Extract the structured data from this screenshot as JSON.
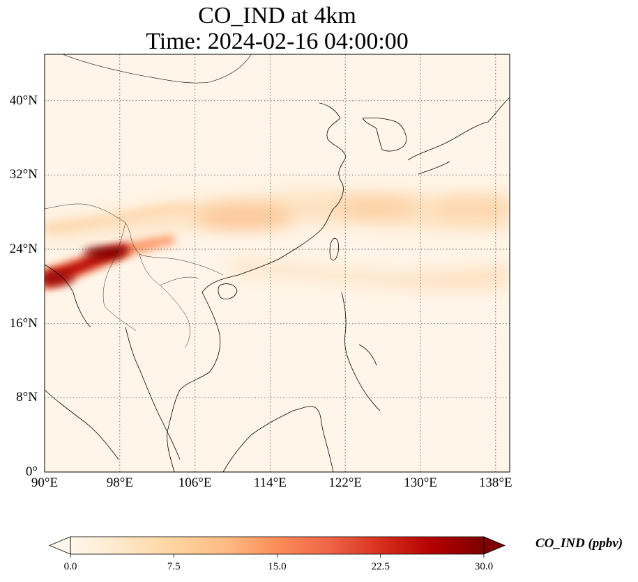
{
  "figure": {
    "title_line1": "CO_IND at 4km",
    "title_line2": "Time: 2024-02-16 04:00:00"
  },
  "map": {
    "projection": "PlateCarree",
    "extent": {
      "lon_min": 90,
      "lon_max": 139.5,
      "lat_min": 0,
      "lat_max": 45
    },
    "gridlines": "dotted",
    "lat_ticks": [
      {
        "value": 0,
        "label": "0°"
      },
      {
        "value": 8,
        "label": "8°N"
      },
      {
        "value": 16,
        "label": "16°N"
      },
      {
        "value": 24,
        "label": "24°N"
      },
      {
        "value": 32,
        "label": "32°N"
      },
      {
        "value": 40,
        "label": "40°N"
      }
    ],
    "lon_ticks": [
      {
        "value": 90,
        "label": "90°E"
      },
      {
        "value": 98,
        "label": "98°E"
      },
      {
        "value": 106,
        "label": "106°E"
      },
      {
        "value": 114,
        "label": "114°E"
      },
      {
        "value": 122,
        "label": "122°E"
      },
      {
        "value": 130,
        "label": "130°E"
      },
      {
        "value": 138,
        "label": "138°E"
      }
    ]
  },
  "colorbar": {
    "label": "CO_IND (ppbv)",
    "colormap": "OrRd",
    "min": 0.0,
    "max": 30.0,
    "extend": "both",
    "ticks": [
      {
        "value": 0.0,
        "label": "0.0"
      },
      {
        "value": 7.5,
        "label": "7.5"
      },
      {
        "value": 15.0,
        "label": "15.0"
      },
      {
        "value": 22.5,
        "label": "22.5"
      },
      {
        "value": 30.0,
        "label": "30.0"
      }
    ],
    "colors": [
      "#fff7ec",
      "#fee8c8",
      "#fdd49e",
      "#fdbb84",
      "#fc8d59",
      "#ef6548",
      "#d7301f",
      "#b30000",
      "#7f0000"
    ]
  }
}
